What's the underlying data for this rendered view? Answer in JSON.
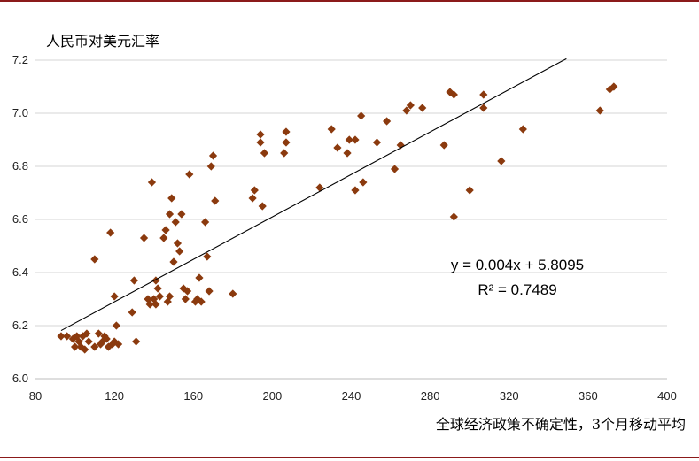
{
  "chart_data": {
    "type": "scatter",
    "ylabel": "人民币对美元汇率",
    "xlabel": "全球经济政策不确定性，3个月移动平均",
    "xlim": [
      80,
      400
    ],
    "ylim": [
      6.0,
      7.2
    ],
    "xticks": [
      "80",
      "120",
      "160",
      "200",
      "240",
      "280",
      "320",
      "360",
      "400"
    ],
    "yticks": [
      "6.0",
      "6.2",
      "6.4",
      "6.6",
      "6.8",
      "7.0",
      "7.2"
    ],
    "grid": "horizontal",
    "marker_color": "#8b3a0e",
    "trendline": {
      "slope": 0.004,
      "intercept": 5.8095,
      "x_from": 93,
      "x_to": 349
    },
    "equation": "y = 0.004x + 5.8095",
    "r2_label": "R² = 0.7489",
    "points": [
      [
        93,
        6.16
      ],
      [
        96,
        6.16
      ],
      [
        99,
        6.15
      ],
      [
        100,
        6.12
      ],
      [
        101,
        6.16
      ],
      [
        102,
        6.14
      ],
      [
        103,
        6.12
      ],
      [
        104,
        6.16
      ],
      [
        105,
        6.11
      ],
      [
        106,
        6.17
      ],
      [
        107,
        6.14
      ],
      [
        110,
        6.12
      ],
      [
        110,
        6.45
      ],
      [
        112,
        6.17
      ],
      [
        113,
        6.13
      ],
      [
        114,
        6.14
      ],
      [
        115,
        6.16
      ],
      [
        116,
        6.15
      ],
      [
        117,
        6.12
      ],
      [
        118,
        6.55
      ],
      [
        119,
        6.13
      ],
      [
        120,
        6.14
      ],
      [
        120,
        6.31
      ],
      [
        121,
        6.2
      ],
      [
        122,
        6.13
      ],
      [
        129,
        6.25
      ],
      [
        130,
        6.37
      ],
      [
        131,
        6.14
      ],
      [
        135,
        6.53
      ],
      [
        137,
        6.3
      ],
      [
        138,
        6.28
      ],
      [
        139,
        6.74
      ],
      [
        140,
        6.3
      ],
      [
        141,
        6.37
      ],
      [
        141,
        6.28
      ],
      [
        142,
        6.34
      ],
      [
        143,
        6.31
      ],
      [
        145,
        6.53
      ],
      [
        146,
        6.56
      ],
      [
        147,
        6.29
      ],
      [
        148,
        6.31
      ],
      [
        148,
        6.62
      ],
      [
        149,
        6.68
      ],
      [
        150,
        6.44
      ],
      [
        151,
        6.59
      ],
      [
        152,
        6.51
      ],
      [
        153,
        6.48
      ],
      [
        154,
        6.62
      ],
      [
        155,
        6.34
      ],
      [
        156,
        6.3
      ],
      [
        157,
        6.33
      ],
      [
        158,
        6.77
      ],
      [
        161,
        6.29
      ],
      [
        162,
        6.3
      ],
      [
        163,
        6.38
      ],
      [
        164,
        6.29
      ],
      [
        166,
        6.59
      ],
      [
        167,
        6.46
      ],
      [
        168,
        6.33
      ],
      [
        169,
        6.8
      ],
      [
        170,
        6.84
      ],
      [
        171,
        6.67
      ],
      [
        180,
        6.32
      ],
      [
        190,
        6.68
      ],
      [
        191,
        6.71
      ],
      [
        194,
        6.92
      ],
      [
        194,
        6.89
      ],
      [
        195,
        6.65
      ],
      [
        196,
        6.85
      ],
      [
        206,
        6.85
      ],
      [
        207,
        6.93
      ],
      [
        207,
        6.89
      ],
      [
        224,
        6.72
      ],
      [
        230,
        6.94
      ],
      [
        233,
        6.87
      ],
      [
        238,
        6.85
      ],
      [
        239,
        6.9
      ],
      [
        242,
        6.71
      ],
      [
        242,
        6.9
      ],
      [
        245,
        6.99
      ],
      [
        246,
        6.74
      ],
      [
        253,
        6.89
      ],
      [
        258,
        6.97
      ],
      [
        262,
        6.79
      ],
      [
        265,
        6.88
      ],
      [
        268,
        7.01
      ],
      [
        270,
        7.03
      ],
      [
        276,
        7.02
      ],
      [
        287,
        6.88
      ],
      [
        290,
        7.08
      ],
      [
        292,
        6.61
      ],
      [
        292,
        7.07
      ],
      [
        300,
        6.71
      ],
      [
        307,
        7.07
      ],
      [
        307,
        7.02
      ],
      [
        316,
        6.82
      ],
      [
        327,
        6.94
      ],
      [
        366,
        7.01
      ],
      [
        371,
        7.09
      ],
      [
        373,
        7.1
      ]
    ]
  }
}
